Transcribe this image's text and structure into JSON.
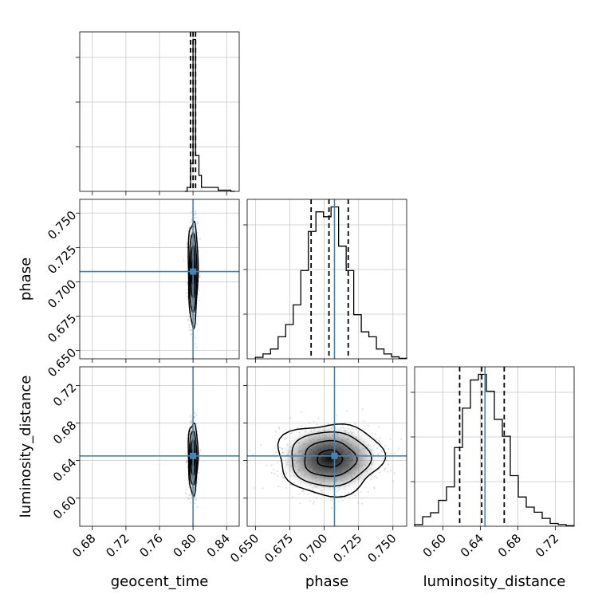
{
  "chart_data": {
    "type": "corner",
    "parameters": [
      "geocent_time",
      "phase",
      "luminosity_distance"
    ],
    "truths": {
      "geocent_time": null,
      "phase": 0.7075,
      "luminosity_distance": 0.645
    },
    "truth_color": "#4682b4",
    "grid": true,
    "ranges": {
      "geocent_time": [
        0.665,
        0.855
      ],
      "phase": [
        0.644,
        0.76
      ],
      "luminosity_distance": [
        0.57,
        0.74
      ]
    },
    "ticks": {
      "geocent_time": [
        "0.68",
        "0.72",
        "0.76",
        "0.80",
        "0.84"
      ],
      "phase": [
        "0.650",
        "0.675",
        "0.700",
        "0.725",
        "0.750"
      ],
      "luminosity_distance": [
        "0.60",
        "0.64",
        "0.68",
        "0.72"
      ]
    },
    "histograms": {
      "geocent_time": {
        "quantiles": [
          0.797,
          0.8,
          0.803
        ],
        "bins": [
          0.79,
          0.793,
          0.797,
          0.8,
          0.803,
          0.807,
          0.81,
          0.83,
          0.845,
          0.85
        ],
        "counts": [
          0,
          1,
          7,
          38,
          9,
          4,
          1,
          0.3,
          0
        ]
      },
      "phase": {
        "quantiles": [
          0.6905,
          0.7035,
          0.7175
        ],
        "bins": [
          0.65,
          0.6555,
          0.661,
          0.6665,
          0.672,
          0.6775,
          0.683,
          0.6885,
          0.694,
          0.6995,
          0.705,
          0.7105,
          0.716,
          0.7215,
          0.727,
          0.7325,
          0.738,
          0.7435,
          0.749,
          0.7545,
          0.76
        ],
        "counts": [
          0.3,
          1,
          2,
          4.5,
          7,
          11,
          18,
          26,
          30,
          29,
          31,
          23,
          18,
          9,
          5.5,
          4.5,
          2,
          1,
          0.4,
          0.1
        ]
      },
      "luminosity_distance": {
        "quantiles": [
          0.618,
          0.6415,
          0.6655
        ],
        "bins": [
          0.57,
          0.5785,
          0.587,
          0.5955,
          0.604,
          0.6125,
          0.621,
          0.6295,
          0.638,
          0.6465,
          0.655,
          0.6635,
          0.672,
          0.6805,
          0.689,
          0.6975,
          0.706,
          0.7145,
          0.723,
          0.7315,
          0.74
        ],
        "counts": [
          0.3,
          1.7,
          2.4,
          4.6,
          7,
          14,
          21,
          26,
          27,
          24,
          19,
          16,
          9,
          5.2,
          3.4,
          2.5,
          1.4,
          0.5,
          0.3,
          0.1
        ]
      }
    },
    "scatter_2d": [
      {
        "x": "geocent_time",
        "y": "phase",
        "x_center": 0.8,
        "x_sigma": 0.0025,
        "y_center": 0.707,
        "y_sigma": 0.0165
      },
      {
        "x": "geocent_time",
        "y": "luminosity_distance",
        "x_center": 0.8,
        "x_sigma": 0.0025,
        "y_center": 0.643,
        "y_sigma": 0.0165
      },
      {
        "x": "phase",
        "y": "luminosity_distance",
        "x_center": 0.704,
        "x_sigma": 0.0165,
        "y_center": 0.642,
        "y_sigma": 0.0165
      }
    ]
  }
}
